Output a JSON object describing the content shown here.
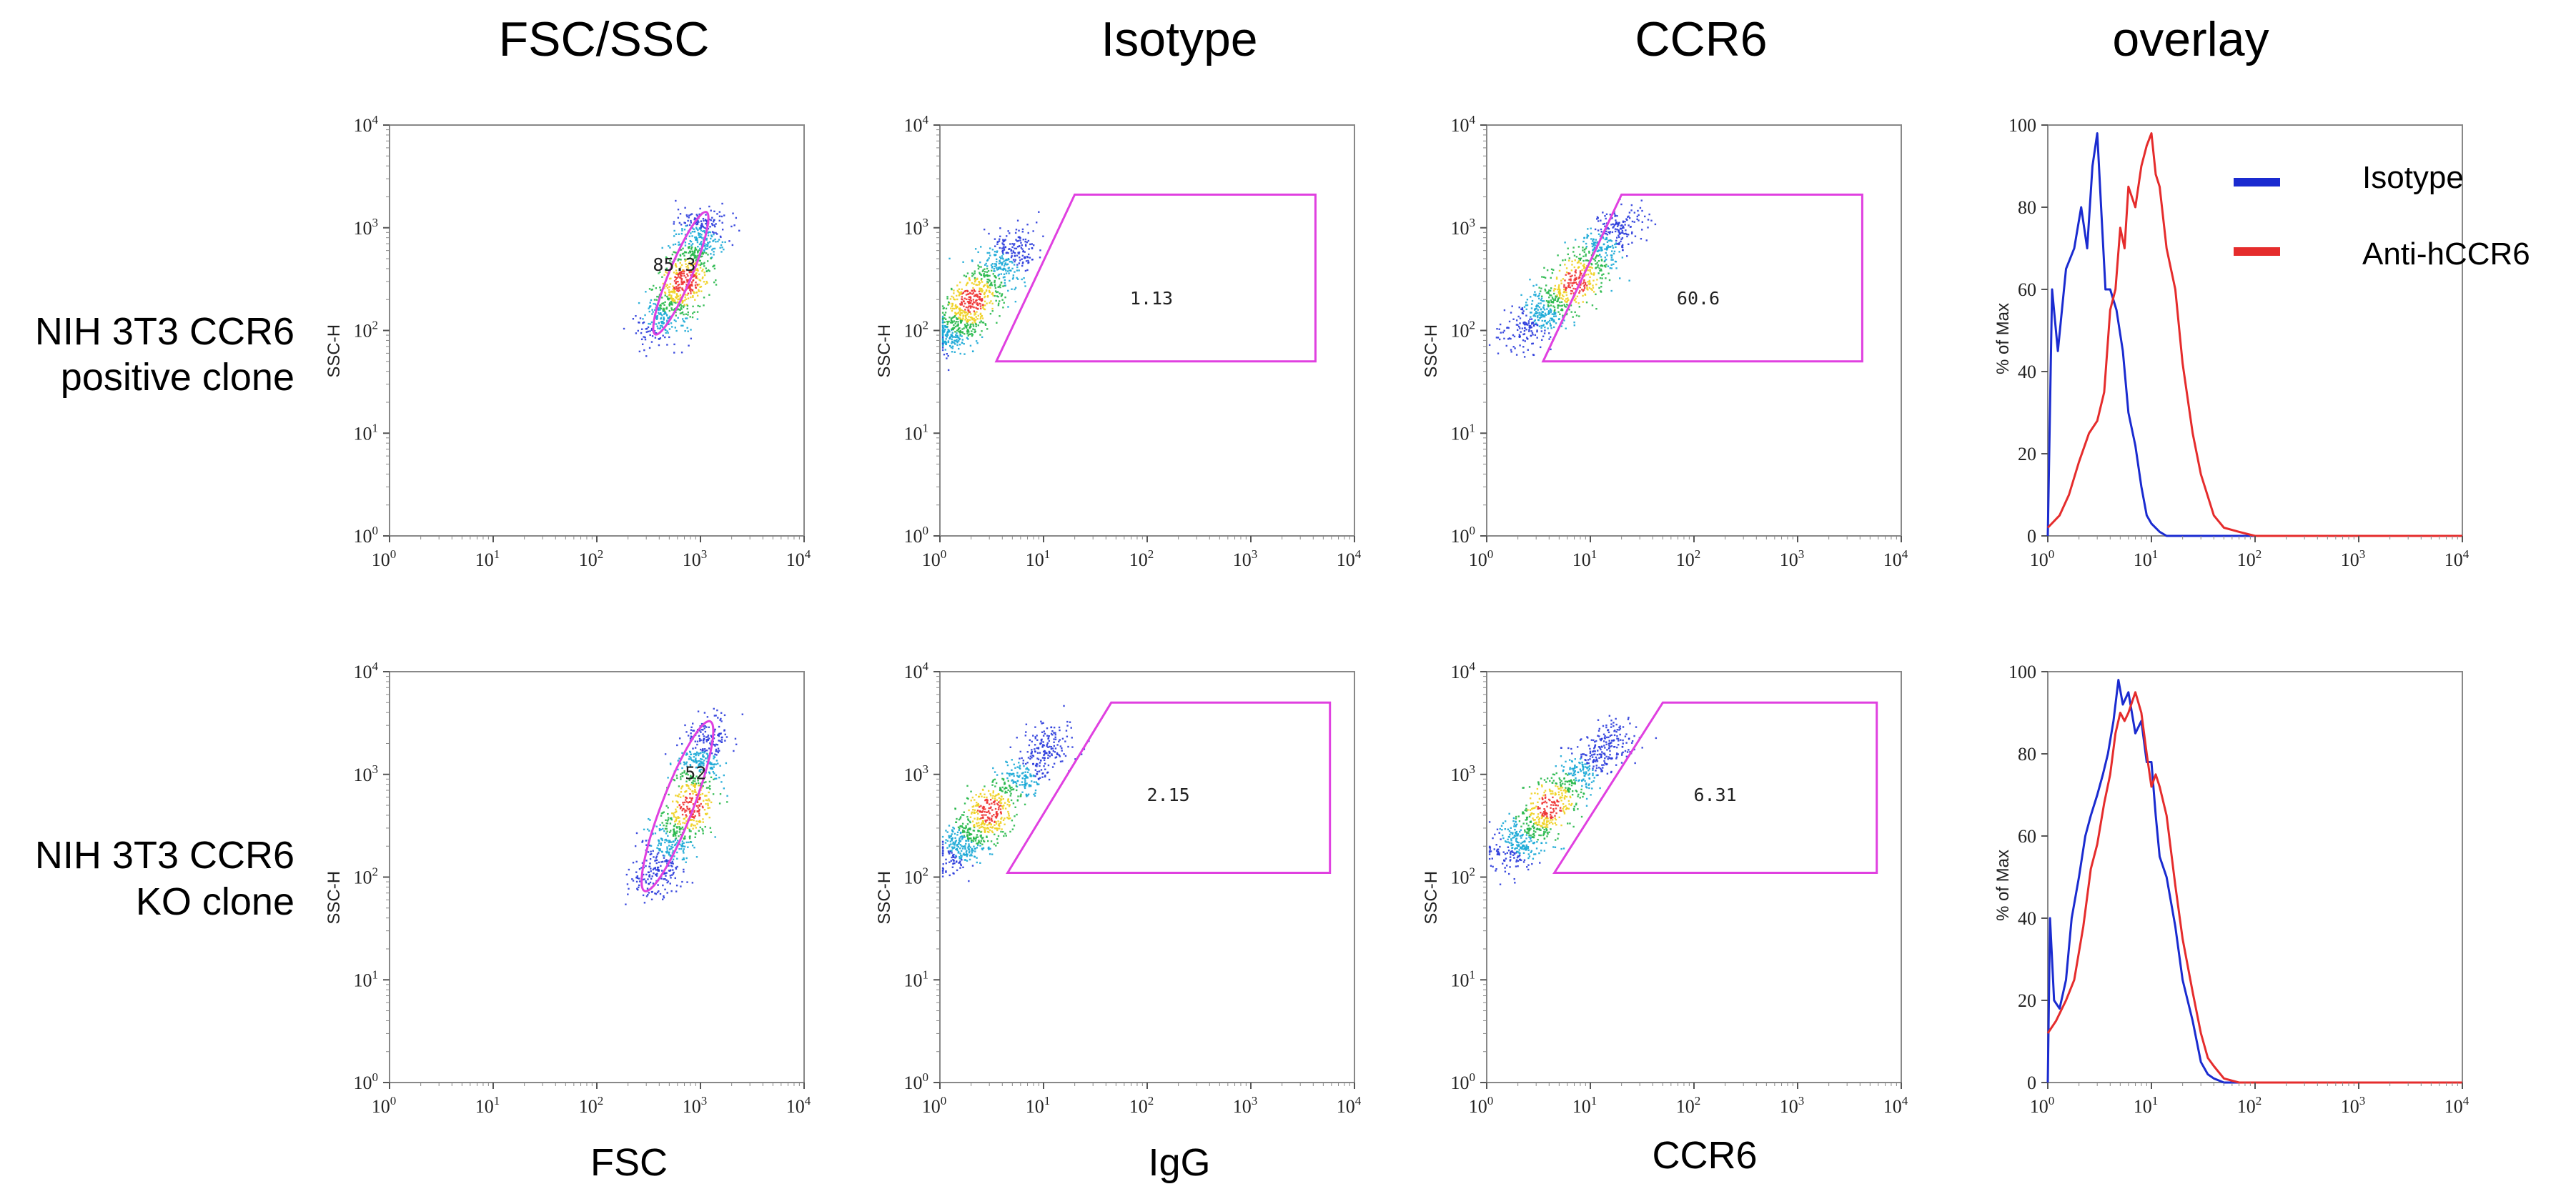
{
  "column_titles": [
    "FSC/SSC",
    "Isotype",
    "CCR6",
    "overlay"
  ],
  "row_labels": [
    {
      "line1": "NIH 3T3 CCR6",
      "line2": "positive clone"
    },
    {
      "line1": "NIH 3T3 CCR6",
      "line2": "KO clone"
    }
  ],
  "x_axis_labels": [
    "FSC",
    "IgG",
    "CCR6"
  ],
  "scatter_y_label": "SSC-H",
  "histogram_y_label": "% of Max",
  "log_ticks": {
    "base": "10",
    "exponents": [
      "0",
      "1",
      "2",
      "3",
      "4"
    ]
  },
  "hist_ticks": [
    "0",
    "20",
    "40",
    "60",
    "80",
    "100"
  ],
  "colors": {
    "gate": "#e040e0",
    "isotype": "#1a2bd0",
    "anti": "#e52c2c"
  },
  "legend": [
    {
      "label": "Isotype",
      "color": "#1a2bd0"
    },
    {
      "label": "Anti-hCCR6",
      "color": "#e52c2c"
    }
  ],
  "chart_data": [
    {
      "type": "scatter",
      "panel": "FSC/SSC",
      "row": "positive clone",
      "xlabel": "FSC",
      "ylabel": "SSC-H",
      "xscale": "log",
      "yscale": "log",
      "xlim": [
        1,
        10000
      ],
      "ylim": [
        1,
        10000
      ],
      "cluster": {
        "center": [
          700,
          300
        ],
        "upper_tail": [
          1100,
          1300
        ],
        "lower_tail": [
          380,
          100
        ]
      },
      "gate": {
        "shape": "ellipse",
        "label": "85.3",
        "label_pos": [
          560,
          380
        ]
      }
    },
    {
      "type": "scatter",
      "panel": "Isotype",
      "row": "positive clone",
      "xlabel": "IgG",
      "ylabel": "SSC-H",
      "xscale": "log",
      "yscale": "log",
      "xlim": [
        1,
        10000
      ],
      "ylim": [
        1,
        10000
      ],
      "cluster": {
        "center": [
          2,
          200
        ],
        "upper_tail": [
          6,
          800
        ],
        "lower_tail": [
          1.2,
          80
        ]
      },
      "gate": {
        "shape": "polygon",
        "label": "1.13",
        "label_pos": [
          110,
          180
        ],
        "vertices": [
          [
            3.5,
            50
          ],
          [
            20,
            2100
          ],
          [
            4200,
            2100
          ],
          [
            4200,
            50
          ]
        ]
      }
    },
    {
      "type": "scatter",
      "panel": "CCR6",
      "row": "positive clone",
      "xlabel": "CCR6",
      "ylabel": "SSC-H",
      "xscale": "log",
      "yscale": "log",
      "xlim": [
        1,
        10000
      ],
      "ylim": [
        1,
        10000
      ],
      "cluster": {
        "center": [
          7,
          300
        ],
        "upper_tail": [
          22,
          1300
        ],
        "lower_tail": [
          2,
          90
        ]
      },
      "gate": {
        "shape": "polygon",
        "label": "60.6",
        "label_pos": [
          110,
          180
        ],
        "vertices": [
          [
            3.5,
            50
          ],
          [
            20,
            2100
          ],
          [
            4200,
            2100
          ],
          [
            4200,
            50
          ]
        ]
      }
    },
    {
      "type": "histogram",
      "panel": "overlay",
      "row": "positive clone",
      "xscale": "log",
      "xlim": [
        1,
        10000
      ],
      "ylim": [
        0,
        100
      ],
      "ylabel": "% of Max",
      "series": [
        {
          "name": "Isotype",
          "x": [
            1,
            1.1,
            1.25,
            1.5,
            1.8,
            2.1,
            2.4,
            2.7,
            3,
            3.3,
            3.6,
            4,
            4.6,
            5.3,
            6,
            7,
            8,
            9,
            10,
            12,
            14,
            20
          ],
          "values": [
            0,
            60,
            45,
            65,
            70,
            80,
            70,
            90,
            98,
            78,
            60,
            60,
            55,
            45,
            30,
            22,
            12,
            5,
            3,
            1,
            0,
            0
          ]
        },
        {
          "name": "Anti-hCCR6",
          "x": [
            1,
            1.3,
            1.6,
            2,
            2.5,
            3,
            3.5,
            4,
            4.5,
            5,
            5.5,
            6,
            7,
            8,
            9,
            10,
            11,
            12,
            14,
            17,
            20,
            25,
            30,
            40,
            50,
            70,
            100
          ],
          "values": [
            2,
            5,
            10,
            18,
            25,
            28,
            35,
            55,
            60,
            75,
            70,
            85,
            80,
            90,
            95,
            98,
            88,
            85,
            70,
            60,
            42,
            25,
            15,
            5,
            2,
            1,
            0
          ]
        }
      ]
    },
    {
      "type": "scatter",
      "panel": "FSC/SSC",
      "row": "KO clone",
      "xlabel": "FSC",
      "ylabel": "SSC-H",
      "xscale": "log",
      "yscale": "log",
      "xlim": [
        1,
        10000
      ],
      "ylim": [
        1,
        10000
      ],
      "cluster": {
        "center": [
          800,
          500
        ],
        "upper_tail": [
          1200,
          3000
        ],
        "lower_tail": [
          300,
          80
        ]
      },
      "gate": {
        "shape": "ellipse",
        "label": "52",
        "label_pos": [
          900,
          900
        ]
      }
    },
    {
      "type": "scatter",
      "panel": "Isotype",
      "row": "KO clone",
      "xlabel": "IgG",
      "ylabel": "SSC-H",
      "xscale": "log",
      "yscale": "log",
      "xlim": [
        1,
        10000
      ],
      "ylim": [
        1,
        10000
      ],
      "cluster": {
        "center": [
          3,
          450
        ],
        "upper_tail": [
          15,
          2500
        ],
        "lower_tail": [
          1.3,
          150
        ]
      },
      "gate": {
        "shape": "polygon",
        "label": "2.15",
        "label_pos": [
          160,
          550
        ],
        "vertices": [
          [
            4.5,
            110
          ],
          [
            45,
            5000
          ],
          [
            5800,
            5000
          ],
          [
            5800,
            110
          ]
        ]
      }
    },
    {
      "type": "scatter",
      "panel": "CCR6",
      "row": "KO clone",
      "xlabel": "CCR6",
      "ylabel": "SSC-H",
      "xscale": "log",
      "yscale": "log",
      "xlim": [
        1,
        10000
      ],
      "ylim": [
        1,
        10000
      ],
      "cluster": {
        "center": [
          4,
          500
        ],
        "upper_tail": [
          20,
          2800
        ],
        "lower_tail": [
          1.5,
          150
        ]
      },
      "gate": {
        "shape": "polygon",
        "label": "6.31",
        "label_pos": [
          160,
          550
        ],
        "vertices": [
          [
            4.5,
            110
          ],
          [
            50,
            5000
          ],
          [
            5800,
            5000
          ],
          [
            5800,
            110
          ]
        ]
      }
    },
    {
      "type": "histogram",
      "panel": "overlay",
      "row": "KO clone",
      "xscale": "log",
      "xlim": [
        1,
        10000
      ],
      "ylim": [
        0,
        100
      ],
      "ylabel": "% of Max",
      "series": [
        {
          "name": "Isotype",
          "x": [
            1,
            1.05,
            1.15,
            1.3,
            1.5,
            1.7,
            2,
            2.3,
            2.6,
            3,
            3.4,
            3.8,
            4.3,
            4.8,
            5.3,
            6,
            7,
            8,
            9,
            10,
            11,
            12,
            14,
            17,
            20,
            25,
            30,
            35,
            40,
            50
          ],
          "values": [
            0,
            40,
            20,
            18,
            25,
            40,
            50,
            60,
            65,
            70,
            75,
            80,
            88,
            98,
            92,
            95,
            85,
            88,
            78,
            78,
            65,
            55,
            50,
            38,
            25,
            15,
            5,
            2,
            1,
            0
          ]
        },
        {
          "name": "Anti-hCCR6",
          "x": [
            1,
            1.2,
            1.5,
            1.8,
            2.2,
            2.6,
            3,
            3.5,
            4,
            4.5,
            5,
            5.5,
            6,
            7,
            8,
            9,
            10,
            11,
            12,
            14,
            17,
            20,
            25,
            30,
            35,
            40,
            50,
            70
          ],
          "values": [
            12,
            15,
            20,
            25,
            38,
            52,
            58,
            68,
            75,
            85,
            90,
            88,
            90,
            95,
            90,
            80,
            72,
            75,
            72,
            65,
            48,
            35,
            22,
            12,
            6,
            4,
            1,
            0
          ]
        }
      ]
    }
  ]
}
